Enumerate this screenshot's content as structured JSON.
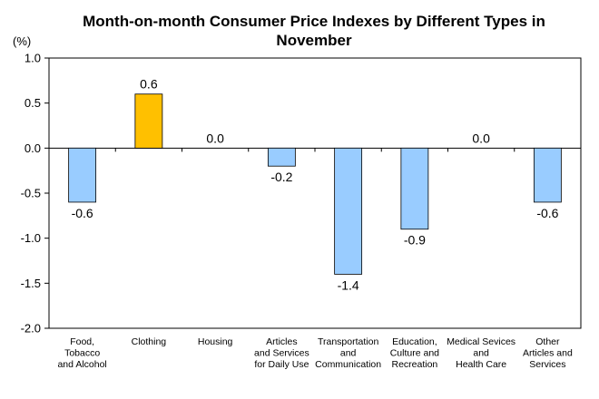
{
  "chart_data": {
    "type": "bar",
    "title_lines": [
      "Month-on-month Consumer Price Indexes by Different Types in",
      "November"
    ],
    "unit_label": "(%)",
    "categories": [
      [
        "Food,",
        "Tobacco",
        "and Alcohol"
      ],
      [
        "Clothing"
      ],
      [
        "Housing"
      ],
      [
        "Articles",
        "and Services",
        "for Daily Use"
      ],
      [
        "Transportation",
        "and",
        "Communication"
      ],
      [
        "Education,",
        "Culture and",
        "Recreation"
      ],
      [
        "Medical Sevices",
        "and",
        "Health Care"
      ],
      [
        "Other",
        "Articles and",
        "Services"
      ]
    ],
    "values": [
      -0.6,
      0.6,
      0.0,
      -0.2,
      -1.4,
      -0.9,
      0.0,
      -0.6
    ],
    "value_labels": [
      "-0.6",
      "0.6",
      "0.0",
      "-0.2",
      "-1.4",
      "-0.9",
      "0.0",
      "-0.6"
    ],
    "ylim": [
      -2.0,
      1.0
    ],
    "yticks": [
      {
        "value": 1.0,
        "label": "1.0"
      },
      {
        "value": 0.5,
        "label": "0.5"
      },
      {
        "value": 0.0,
        "label": "0.0"
      },
      {
        "value": -0.5,
        "label": "-0.5"
      },
      {
        "value": -1.0,
        "label": "-1.0"
      },
      {
        "value": -1.5,
        "label": "-1.5"
      },
      {
        "value": -2.0,
        "label": "-2.0"
      }
    ],
    "grid": false,
    "highlight_index": 1,
    "colors": {
      "bar": "#99CCFF",
      "highlight": "#FFC000",
      "axis": "#000000"
    }
  }
}
